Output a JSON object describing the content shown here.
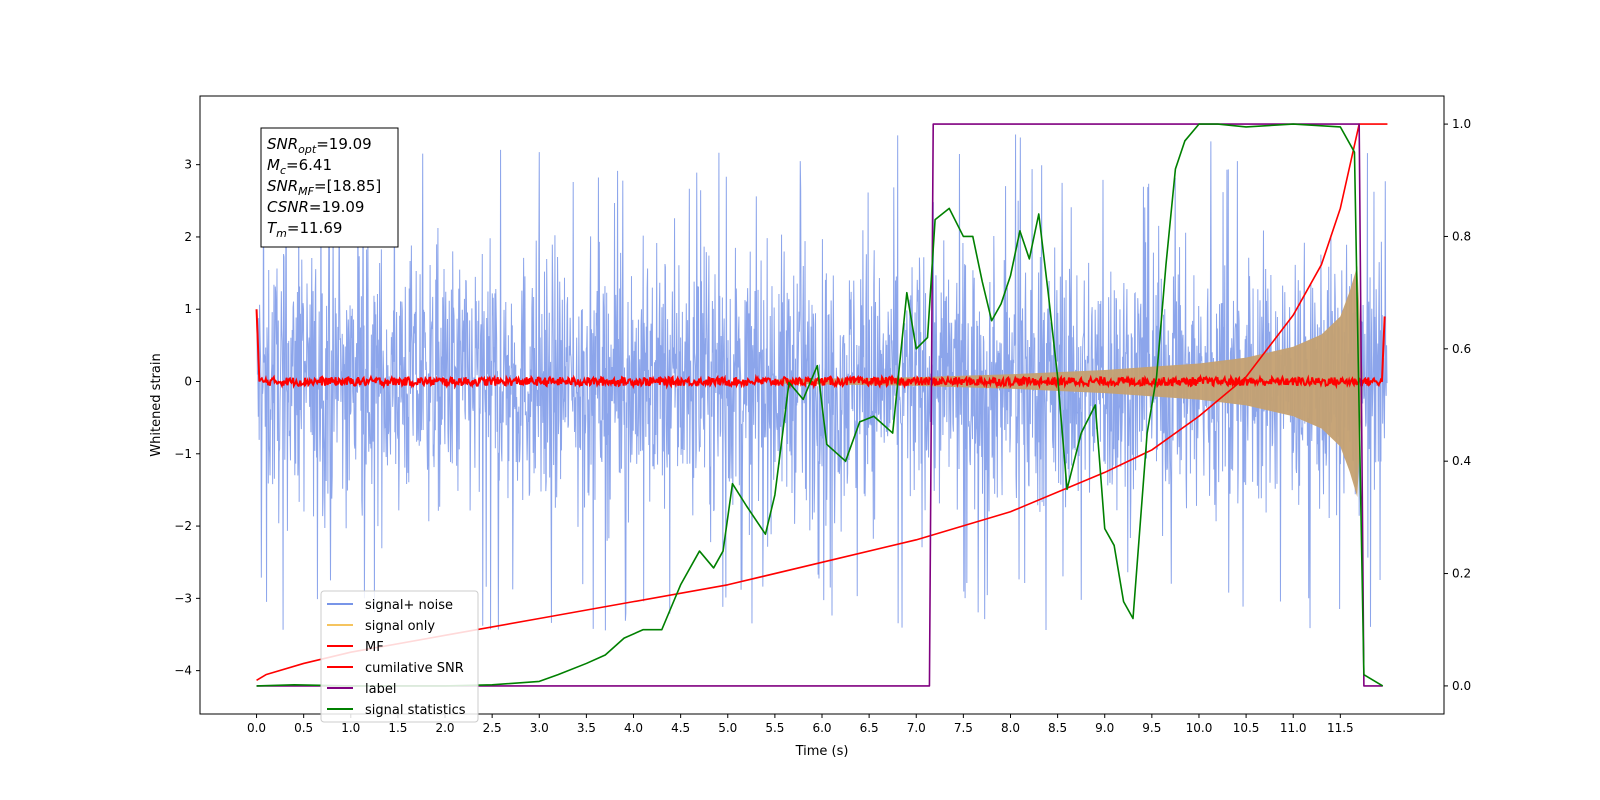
{
  "chart_data": {
    "type": "line",
    "xlabel": "Time (s)",
    "ylabel_left": "Whitened strain",
    "ylabel_right": "",
    "xlim": [
      -0.6,
      12.6
    ],
    "ylim_left": [
      -4.6,
      3.95
    ],
    "ylim_right": [
      -0.05,
      1.05
    ],
    "x_ticks": [
      0.0,
      0.5,
      1.0,
      1.5,
      2.0,
      2.5,
      3.0,
      3.5,
      4.0,
      4.5,
      5.0,
      5.5,
      6.0,
      6.5,
      7.0,
      7.5,
      8.0,
      8.5,
      9.0,
      9.5,
      10.0,
      10.5,
      11.0,
      11.5
    ],
    "y_ticks_left": [
      3,
      2,
      1,
      0,
      -1,
      -2,
      -3,
      -4
    ],
    "y_ticks_right": [
      1.0,
      0.8,
      0.6,
      0.4,
      0.2,
      0.0
    ],
    "grid": false,
    "legend_position": "lower-left",
    "annotation": {
      "lines": [
        {
          "sym": "SNR",
          "sub": "opt",
          "value": "=19.09"
        },
        {
          "sym": "M",
          "sub": "c",
          "value": "=6.41"
        },
        {
          "sym": "SNR",
          "sub": "MF",
          "value": "=[18.85]"
        },
        {
          "sym": "CSNR",
          "sub": "",
          "value": "=19.09"
        },
        {
          "sym": "T",
          "sub": "m",
          "value": "=11.69"
        }
      ]
    },
    "series": [
      {
        "name": "signal+ noise",
        "color": "#7895e8",
        "axis": "left",
        "noise_range": [
          -2.6,
          2.6
        ],
        "extreme_range": [
          -3.45,
          3.45
        ],
        "duration": 12.0
      },
      {
        "name": "signal only",
        "color": "#f5c45f",
        "axis": "left",
        "envelope": {
          "t": [
            5.5,
            7.0,
            8.0,
            9.0,
            10.0,
            10.5,
            11.0,
            11.3,
            11.5,
            11.6,
            11.68
          ],
          "amp": [
            0.03,
            0.06,
            0.1,
            0.16,
            0.25,
            0.33,
            0.48,
            0.65,
            0.9,
            1.25,
            1.6
          ]
        }
      },
      {
        "name": "MF",
        "color": "#ff0000",
        "axis": "left",
        "level": 0.0,
        "jitter": 0.06,
        "start_value": 1.0,
        "end_value": 0.9
      },
      {
        "name": "cumilative SNR",
        "color": "#ff0000",
        "axis": "right",
        "x": [
          0.0,
          0.1,
          0.5,
          1.0,
          2.0,
          3.0,
          4.0,
          5.0,
          6.0,
          7.0,
          8.0,
          9.0,
          9.5,
          10.0,
          10.5,
          11.0,
          11.3,
          11.5,
          11.7,
          12.0
        ],
        "y": [
          0.01,
          0.02,
          0.04,
          0.06,
          0.09,
          0.12,
          0.15,
          0.18,
          0.22,
          0.26,
          0.31,
          0.38,
          0.42,
          0.48,
          0.55,
          0.66,
          0.75,
          0.85,
          1.0,
          1.0
        ]
      },
      {
        "name": "label",
        "color": "#800080",
        "axis": "right",
        "x": [
          0.0,
          7.14,
          7.18,
          11.7,
          11.75,
          11.95
        ],
        "y": [
          0.0,
          0.0,
          1.0,
          1.0,
          0.0,
          0.0
        ]
      },
      {
        "name": "signal statistics",
        "color": "#008000",
        "axis": "right",
        "x": [
          0.0,
          0.4,
          1.0,
          1.5,
          2.0,
          2.5,
          3.0,
          3.2,
          3.5,
          3.7,
          3.9,
          4.1,
          4.3,
          4.4,
          4.5,
          4.7,
          4.85,
          4.95,
          5.05,
          5.2,
          5.4,
          5.5,
          5.65,
          5.8,
          5.95,
          6.05,
          6.25,
          6.4,
          6.55,
          6.75,
          6.9,
          7.0,
          7.12,
          7.2,
          7.35,
          7.5,
          7.6,
          7.7,
          7.8,
          7.9,
          8.0,
          8.1,
          8.2,
          8.3,
          8.4,
          8.5,
          8.6,
          8.75,
          8.9,
          9.0,
          9.1,
          9.2,
          9.3,
          9.45,
          9.55,
          9.65,
          9.75,
          9.85,
          10.0,
          10.2,
          10.5,
          11.0,
          11.5,
          11.65,
          11.75,
          11.95
        ],
        "y": [
          0.0,
          0.002,
          0.0,
          0.0,
          0.0,
          0.002,
          0.008,
          0.02,
          0.04,
          0.055,
          0.085,
          0.1,
          0.1,
          0.14,
          0.18,
          0.24,
          0.21,
          0.24,
          0.36,
          0.32,
          0.27,
          0.34,
          0.54,
          0.51,
          0.57,
          0.43,
          0.4,
          0.47,
          0.48,
          0.45,
          0.7,
          0.6,
          0.62,
          0.83,
          0.85,
          0.8,
          0.8,
          0.72,
          0.65,
          0.68,
          0.73,
          0.81,
          0.76,
          0.84,
          0.7,
          0.55,
          0.35,
          0.45,
          0.5,
          0.28,
          0.25,
          0.15,
          0.12,
          0.45,
          0.55,
          0.75,
          0.92,
          0.97,
          1.0,
          1.0,
          0.995,
          1.0,
          0.995,
          0.95,
          0.02,
          0.0
        ]
      }
    ]
  }
}
